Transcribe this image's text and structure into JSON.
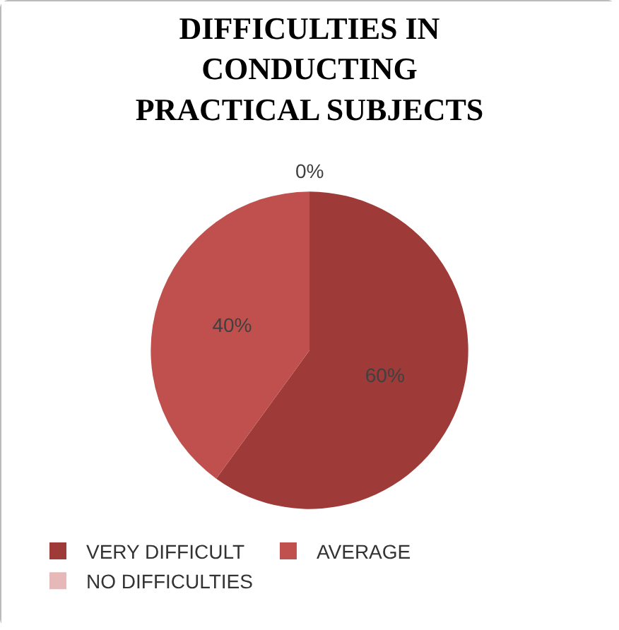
{
  "chart_data": {
    "type": "pie",
    "title": "DIFFICULTIES IN CONDUCTING PRACTICAL SUBJECTS",
    "categories": [
      "VERY DIFFICULT",
      "AVERAGE",
      "NO DIFFICULTIES"
    ],
    "values": [
      60,
      40,
      0
    ],
    "value_labels": [
      "60%",
      "40%",
      "0%"
    ],
    "colors": [
      "#9e3b39",
      "#c0504d",
      "#e6b9b8"
    ],
    "legend": "bottom"
  }
}
